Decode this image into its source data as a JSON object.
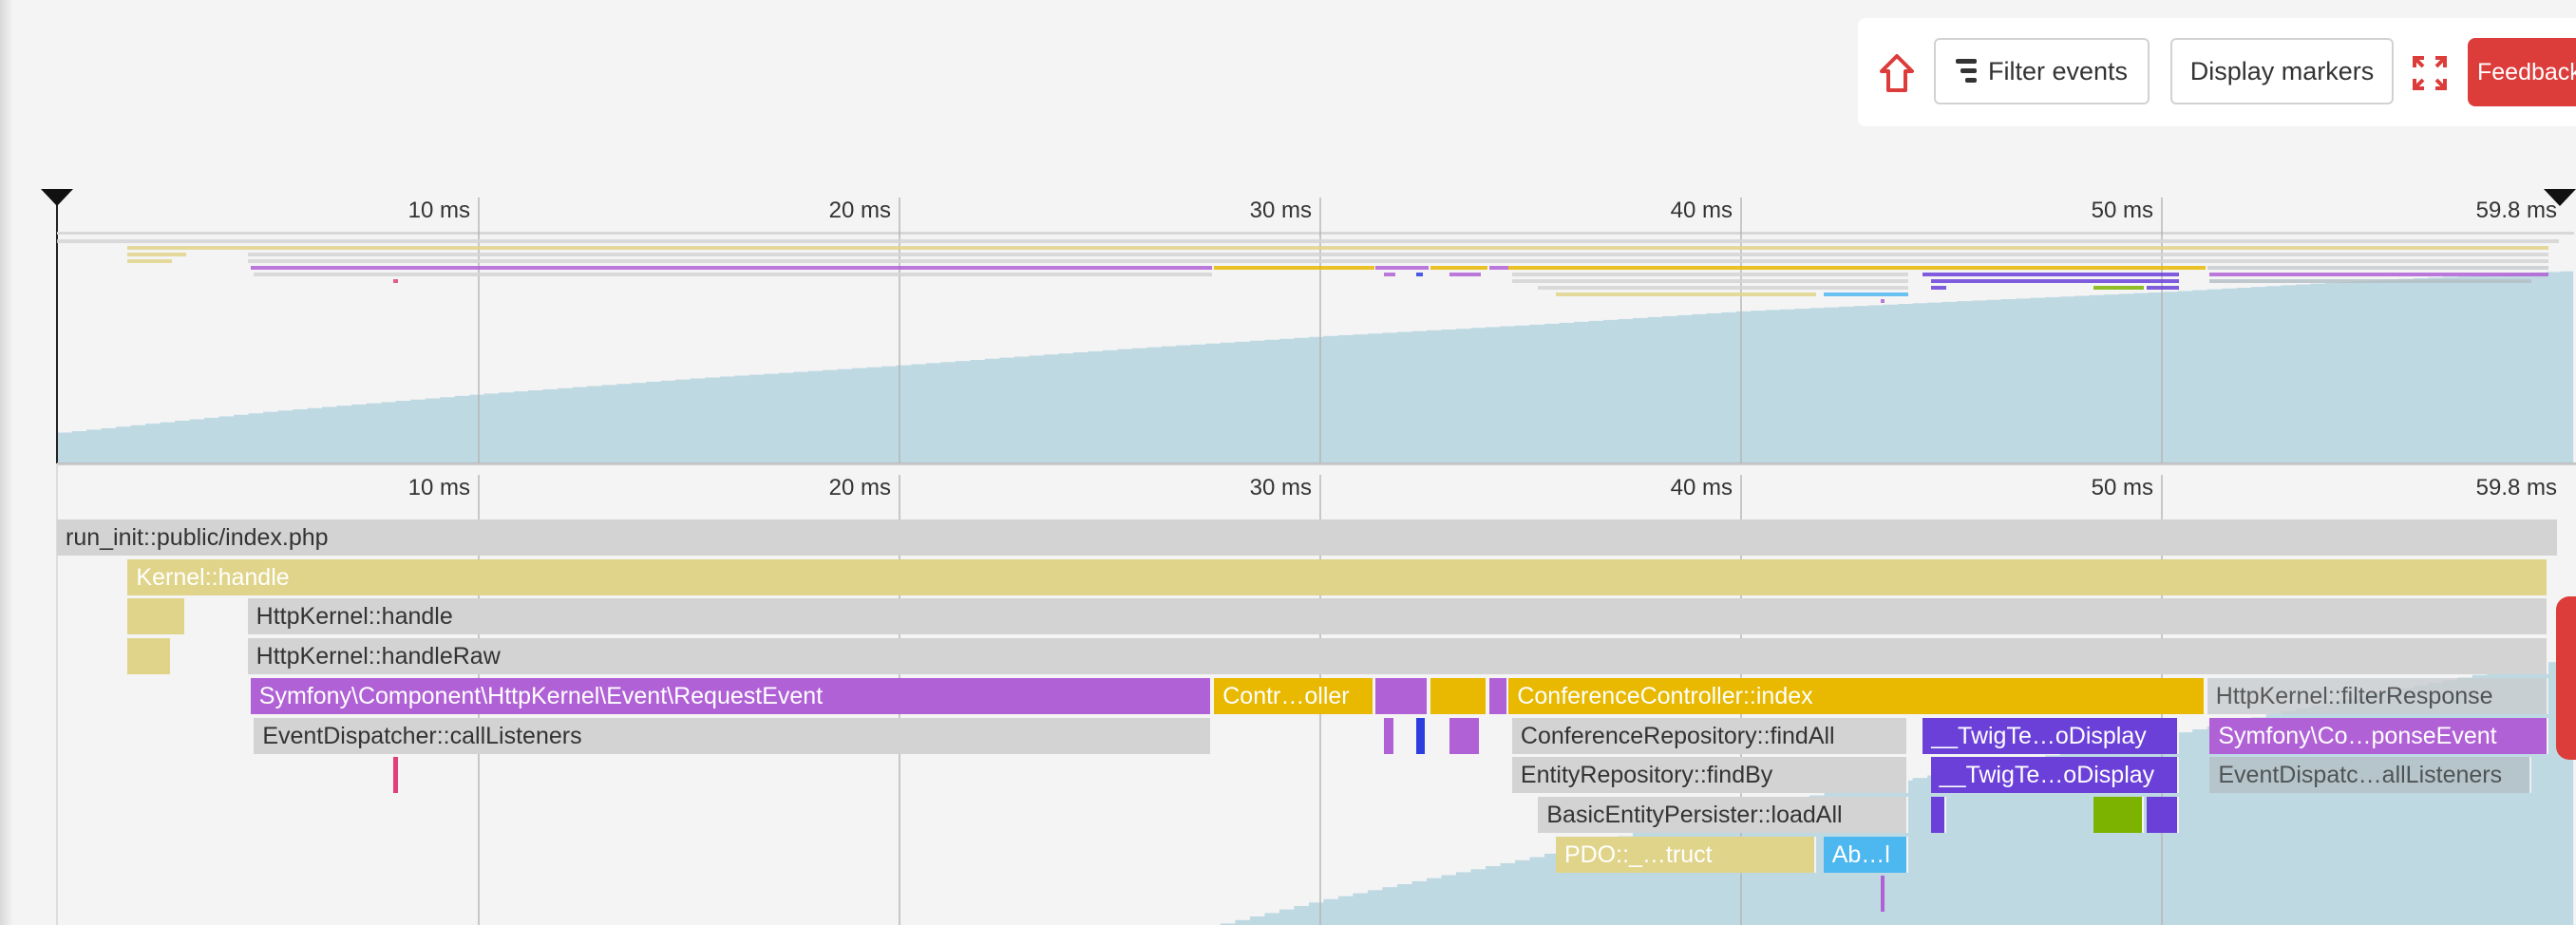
{
  "toolbar": {
    "home_icon": "home-arrow-icon",
    "filter_label": "Filter events",
    "filter_icon": "filter-icon",
    "markers_label": "Display markers",
    "fullscreen_icon": "expand-icon",
    "feedback_label": "Feedback",
    "accent_color": "#dc3c3a"
  },
  "axis": {
    "max_ms": 59.8,
    "ticks": [
      {
        "ms": 10,
        "label": "10 ms"
      },
      {
        "ms": 20,
        "label": "20 ms"
      },
      {
        "ms": 30,
        "label": "30 ms"
      },
      {
        "ms": 40,
        "label": "40 ms"
      },
      {
        "ms": 50,
        "label": "50 ms"
      },
      {
        "ms": 59.8,
        "label": "59.8 ms"
      }
    ]
  },
  "memory_profile": {
    "color": "#bfd9e3",
    "points": [
      [
        0,
        0.16
      ],
      [
        5,
        0.27
      ],
      [
        10,
        0.36
      ],
      [
        15,
        0.44
      ],
      [
        20,
        0.51
      ],
      [
        25,
        0.59
      ],
      [
        30,
        0.66
      ],
      [
        35,
        0.72
      ],
      [
        40,
        0.79
      ],
      [
        45,
        0.84
      ],
      [
        50,
        0.89
      ],
      [
        55,
        0.95
      ],
      [
        59.8,
        1.0
      ]
    ]
  },
  "events": [
    {
      "row": 0,
      "start": 0,
      "end": 59.45,
      "label": "run_init::public/index.php",
      "color": "#d3d3d3",
      "text": "#333"
    },
    {
      "row": 1,
      "start": 1.68,
      "end": 59.2,
      "label": "Kernel::handle",
      "color": "#e0d48a",
      "text": "#fff"
    },
    {
      "row": 2,
      "start": 1.68,
      "end": 3.08,
      "label": "",
      "color": "#e0d48a",
      "text": "#fff"
    },
    {
      "row": 2,
      "start": 4.53,
      "end": 59.2,
      "label": "HttpKernel::handle",
      "color": "#d3d3d3",
      "text": "#333"
    },
    {
      "row": 3,
      "start": 1.68,
      "end": 2.73,
      "label": "",
      "color": "#e0d48a",
      "text": "#fff"
    },
    {
      "row": 3,
      "start": 4.53,
      "end": 59.2,
      "label": "HttpKernel::handleRaw",
      "color": "#d3d3d3",
      "text": "#333"
    },
    {
      "row": 4,
      "start": 4.6,
      "end": 27.44,
      "label": "Symfony\\Component\\HttpKernel\\Event\\RequestEvent",
      "color": "#b061d6",
      "text": "#fff"
    },
    {
      "row": 4,
      "start": 27.5,
      "end": 31.3,
      "label": "Contr…oller",
      "color": "#e8b900",
      "text": "#fff"
    },
    {
      "row": 4,
      "start": 31.34,
      "end": 32.6,
      "label": "",
      "color": "#b061d6",
      "text": "#fff"
    },
    {
      "row": 4,
      "start": 32.63,
      "end": 34.0,
      "label": "",
      "color": "#e8b900",
      "text": "#fff"
    },
    {
      "row": 4,
      "start": 34.04,
      "end": 34.5,
      "label": "",
      "color": "#b061d6",
      "text": "#fff"
    },
    {
      "row": 4,
      "start": 34.5,
      "end": 51.05,
      "label": "ConferenceController::index",
      "color": "#e8b900",
      "text": "#fff"
    },
    {
      "row": 4,
      "start": 51.1,
      "end": 59.2,
      "label": "HttpKernel::filterResponse",
      "color": "#c9cdd0",
      "text": "#333"
    },
    {
      "row": 5,
      "start": 4.68,
      "end": 27.44,
      "label": "EventDispatcher::callListeners",
      "color": "#d3d3d3",
      "text": "#333"
    },
    {
      "row": 5,
      "start": 31.54,
      "end": 31.8,
      "label": "",
      "color": "#b061d6",
      "text": "#fff"
    },
    {
      "row": 5,
      "start": 32.3,
      "end": 32.45,
      "label": "",
      "color": "#2d3ee0",
      "text": "#fff"
    },
    {
      "row": 5,
      "start": 33.1,
      "end": 33.84,
      "label": "",
      "color": "#b061d6",
      "text": "#fff"
    },
    {
      "row": 5,
      "start": 34.58,
      "end": 43.99,
      "label": "ConferenceRepository::findAll",
      "color": "#d3d3d3",
      "text": "#333"
    },
    {
      "row": 5,
      "start": 44.34,
      "end": 50.43,
      "label": "__TwigTe…oDisplay",
      "color": "#6a40d8",
      "text": "#fff"
    },
    {
      "row": 5,
      "start": 51.16,
      "end": 59.2,
      "label": "Symfony\\Co…ponseEvent",
      "color": "#b061d6",
      "text": "#fff"
    },
    {
      "row": 6,
      "start": 8.0,
      "end": 8.1,
      "label": "",
      "color": "#e0407a",
      "text": "#fff"
    },
    {
      "row": 6,
      "start": 34.58,
      "end": 43.99,
      "label": "EntityRepository::findBy",
      "color": "#d3d3d3",
      "text": "#333"
    },
    {
      "row": 6,
      "start": 44.53,
      "end": 50.43,
      "label": "__TwigTe…oDisplay",
      "color": "#6a40d8",
      "text": "#fff"
    },
    {
      "row": 6,
      "start": 51.16,
      "end": 58.8,
      "label": "EventDispatc…allListeners",
      "color": "#b4c0c6",
      "text": "#333"
    },
    {
      "row": 7,
      "start": 35.2,
      "end": 43.99,
      "label": "BasicEntityPersister::loadAll",
      "color": "#d3d3d3",
      "text": "#333"
    },
    {
      "row": 7,
      "start": 44.53,
      "end": 44.9,
      "label": "",
      "color": "#6a40d8",
      "text": "#fff"
    },
    {
      "row": 7,
      "start": 48.4,
      "end": 49.6,
      "label": "",
      "color": "#7cb300",
      "text": "#fff"
    },
    {
      "row": 7,
      "start": 49.67,
      "end": 50.43,
      "label": "",
      "color": "#6a40d8",
      "text": "#fff"
    },
    {
      "row": 8,
      "start": 35.62,
      "end": 41.8,
      "label": "PDO::_…truct",
      "color": "#e0d48a",
      "text": "#fff"
    },
    {
      "row": 8,
      "start": 41.98,
      "end": 43.99,
      "label": "Ab…l",
      "color": "#4db8f0",
      "text": "#fff"
    },
    {
      "row": 9,
      "start": 43.33,
      "end": 43.43,
      "label": "",
      "color": "#b061d6",
      "text": "#fff"
    }
  ]
}
